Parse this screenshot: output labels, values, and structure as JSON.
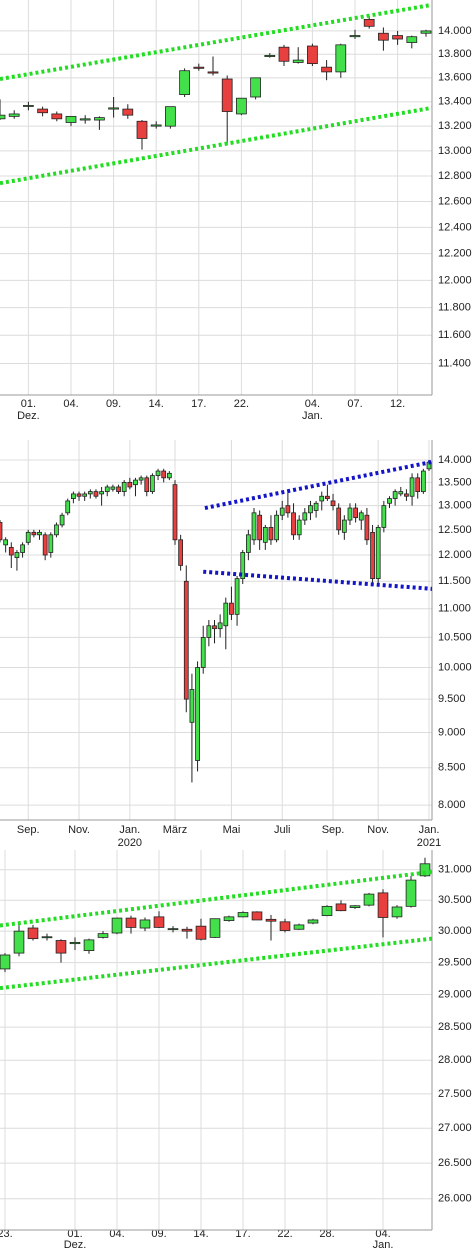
{
  "chart_data": [
    {
      "type": "candlestick",
      "log_scale": true,
      "grid": true,
      "up_color": "#44e04c",
      "down_color": "#e8403f",
      "categories": [
        null,
        null,
        [
          "01.",
          "Dez."
        ],
        null,
        null,
        "04.",
        null,
        null,
        "09.",
        null,
        null,
        "14.",
        null,
        null,
        "17.",
        null,
        null,
        "22.",
        null,
        null,
        null,
        null,
        [
          "04.",
          "Jan."
        ],
        null,
        null,
        "07.",
        null,
        null,
        "12.",
        null,
        null
      ],
      "open": [
        13260,
        13280,
        13370,
        13340,
        13300,
        13230,
        13250,
        13250,
        13340,
        13340,
        13240,
        13200,
        13200,
        13460,
        13690,
        13650,
        13590,
        13300,
        13440,
        13780,
        13860,
        13730,
        13870,
        13690,
        13650,
        13950,
        14100,
        13980,
        13960,
        13900,
        13980
      ],
      "high": [
        13420,
        13330,
        13400,
        13360,
        13320,
        13280,
        13290,
        13280,
        13440,
        13380,
        13250,
        13240,
        13360,
        13680,
        13720,
        13780,
        13620,
        13430,
        13600,
        13810,
        13880,
        13860,
        13890,
        13750,
        13890,
        14010,
        14130,
        14030,
        14000,
        13960,
        14010
      ],
      "low": [
        13250,
        13260,
        13330,
        13280,
        13240,
        13200,
        13220,
        13170,
        13270,
        13260,
        13010,
        13180,
        13180,
        13440,
        13660,
        13620,
        13050,
        13290,
        13420,
        13770,
        13700,
        13720,
        13700,
        13580,
        13600,
        13930,
        14020,
        13830,
        13880,
        13850,
        13950
      ],
      "close": [
        13290,
        13300,
        13370,
        13310,
        13260,
        13280,
        13260,
        13270,
        13350,
        13290,
        13100,
        13210,
        13360,
        13660,
        13680,
        13640,
        13320,
        13430,
        13600,
        13790,
        13740,
        13750,
        13720,
        13650,
        13880,
        13960,
        14040,
        13920,
        13930,
        13950,
        14000
      ],
      "trendlines": [
        {
          "color": "#22dd22",
          "points": [
            [
              0,
              13590
            ],
            [
              30.4,
              14227
            ]
          ]
        },
        {
          "color": "#22dd22",
          "points": [
            [
              0,
              12743
            ],
            [
              30.4,
              13350
            ]
          ]
        }
      ],
      "ylim": [
        11180,
        14270
      ],
      "yticks": [
        {
          "value": 11400,
          "label": "11.400"
        },
        {
          "value": 11600,
          "label": "11.600"
        },
        {
          "value": 11800,
          "label": "11.800"
        },
        {
          "value": 12000,
          "label": "12.000"
        },
        {
          "value": 12200,
          "label": "12.200"
        },
        {
          "value": 12400,
          "label": "12.400"
        },
        {
          "value": 12600,
          "label": "12.600"
        },
        {
          "value": 12800,
          "label": "12.800"
        },
        {
          "value": 13000,
          "label": "13.000"
        },
        {
          "value": 13200,
          "label": "13.200"
        },
        {
          "value": 13400,
          "label": "13.400"
        },
        {
          "value": 13600,
          "label": "13.600"
        },
        {
          "value": 13800,
          "label": "13.800"
        },
        {
          "value": 14000,
          "label": "14.000"
        }
      ]
    },
    {
      "type": "candlestick",
      "log_scale": true,
      "grid": true,
      "up_color": "#44e04c",
      "down_color": "#e8403f",
      "categories": [
        null,
        null,
        null,
        null,
        null,
        "Sep.",
        null,
        null,
        null,
        null,
        null,
        null,
        null,
        null,
        "Nov.",
        null,
        null,
        null,
        null,
        null,
        null,
        null,
        null,
        [
          "Jan.",
          "2020"
        ],
        null,
        null,
        null,
        null,
        null,
        null,
        null,
        "März",
        null,
        null,
        null,
        null,
        null,
        null,
        null,
        null,
        null,
        "Mai",
        null,
        null,
        null,
        null,
        null,
        null,
        null,
        null,
        "Juli",
        null,
        null,
        null,
        null,
        null,
        null,
        null,
        null,
        "Sep.",
        null,
        null,
        null,
        null,
        null,
        null,
        null,
        "Nov.",
        null,
        null,
        null,
        null,
        null,
        null,
        null,
        null,
        [
          "Jan.",
          "2021"
        ]
      ],
      "open": [
        12650,
        12200,
        12150,
        11950,
        12050,
        12250,
        12450,
        12400,
        12400,
        12050,
        12400,
        12600,
        12850,
        13150,
        13250,
        13200,
        13250,
        13300,
        13250,
        13300,
        13350,
        13400,
        13300,
        13500,
        13450,
        13550,
        13600,
        13300,
        13650,
        13750,
        13600,
        13450,
        12300,
        11500,
        9150,
        8600,
        10000,
        10500,
        10700,
        10650,
        10700,
        11100,
        10900,
        11550,
        12050,
        12300,
        12800,
        12250,
        12550,
        12300,
        12800,
        13000,
        12850,
        12400,
        12700,
        12850,
        12900,
        13100,
        13200,
        13100,
        12950,
        12450,
        12700,
        12950,
        12700,
        12800,
        12450,
        11550,
        12550,
        13050,
        13150,
        13250,
        13250,
        13200,
        13600,
        13300,
        13800
      ],
      "high": [
        12700,
        12350,
        12250,
        12100,
        12250,
        12500,
        12500,
        12500,
        12450,
        12450,
        12650,
        12850,
        13150,
        13300,
        13300,
        13300,
        13350,
        13350,
        13400,
        13450,
        13450,
        13450,
        13550,
        13600,
        13600,
        13650,
        13650,
        13700,
        13800,
        13800,
        13750,
        13550,
        12400,
        11800,
        9900,
        10100,
        10700,
        10800,
        10800,
        10900,
        11200,
        11400,
        11600,
        12100,
        12500,
        12950,
        12900,
        12600,
        12800,
        12900,
        13100,
        13300,
        13050,
        12800,
        12950,
        13100,
        13100,
        13300,
        13450,
        13250,
        13050,
        12800,
        13050,
        13050,
        12900,
        12950,
        12600,
        12600,
        13100,
        13200,
        13350,
        13400,
        13350,
        13700,
        13700,
        13800,
        14000
      ],
      "low": [
        12250,
        12050,
        11750,
        11700,
        11950,
        12200,
        12350,
        12300,
        11900,
        11950,
        12350,
        12550,
        12800,
        13050,
        13100,
        13100,
        13150,
        13150,
        13000,
        13200,
        13300,
        13250,
        13200,
        13350,
        13200,
        13450,
        13200,
        13250,
        13550,
        13500,
        13550,
        12200,
        11700,
        9300,
        8300,
        8450,
        9900,
        10350,
        10400,
        10500,
        10300,
        10800,
        10700,
        11450,
        11900,
        12200,
        12100,
        12100,
        12200,
        12250,
        12700,
        12750,
        12300,
        12300,
        12600,
        12700,
        12750,
        12900,
        13100,
        12900,
        12400,
        12300,
        12600,
        12650,
        12500,
        12200,
        11450,
        11450,
        12450,
        12950,
        13000,
        13200,
        13100,
        13000,
        13150,
        13250,
        13750
      ],
      "close": [
        12300,
        12300,
        12000,
        12050,
        12200,
        12450,
        12400,
        12450,
        12000,
        12400,
        12600,
        12800,
        13100,
        13250,
        13200,
        13250,
        13300,
        13200,
        13300,
        13400,
        13400,
        13300,
        13500,
        13400,
        13550,
        13600,
        13300,
        13650,
        13750,
        13600,
        13700,
        12300,
        11800,
        9500,
        9650,
        10000,
        10500,
        10700,
        10650,
        10750,
        11100,
        10900,
        11550,
        12050,
        12400,
        12850,
        12300,
        12550,
        12300,
        12800,
        12950,
        12850,
        12400,
        12700,
        12850,
        13000,
        13050,
        13200,
        13150,
        13000,
        12500,
        12700,
        12950,
        12750,
        12850,
        12300,
        11550,
        12550,
        13000,
        13150,
        13300,
        13300,
        13200,
        13600,
        13300,
        13750,
        13950
      ],
      "trendlines": [
        {
          "color": "#1515c8",
          "points": [
            [
              36.3,
              12950
            ],
            [
              76.5,
              13955
            ]
          ]
        },
        {
          "color": "#1515c8",
          "points": [
            [
              36,
              11680
            ],
            [
              77.9,
              11350
            ]
          ]
        }
      ],
      "ylim": [
        7810,
        14460
      ],
      "yticks": [
        {
          "value": 8000,
          "label": "8.000"
        },
        {
          "value": 8500,
          "label": "8.500"
        },
        {
          "value": 9000,
          "label": "9.000"
        },
        {
          "value": 9500,
          "label": "9.500"
        },
        {
          "value": 10000,
          "label": "10.000"
        },
        {
          "value": 10500,
          "label": "10.500"
        },
        {
          "value": 11000,
          "label": "11.000"
        },
        {
          "value": 11500,
          "label": "11.500"
        },
        {
          "value": 12000,
          "label": "12.000"
        },
        {
          "value": 12500,
          "label": "12.500"
        },
        {
          "value": 13000,
          "label": "13.000"
        },
        {
          "value": 13500,
          "label": "13.500"
        },
        {
          "value": 14000,
          "label": "14.000"
        }
      ]
    },
    {
      "type": "candlestick",
      "log_scale": true,
      "grid": true,
      "up_color": "#44e04c",
      "down_color": "#e8403f",
      "categories": [
        "23.",
        null,
        null,
        null,
        null,
        [
          "01.",
          "Dez."
        ],
        null,
        null,
        "04.",
        null,
        null,
        "09.",
        null,
        null,
        "14.",
        null,
        null,
        "17.",
        null,
        null,
        "22.",
        null,
        null,
        "28.",
        null,
        null,
        null,
        [
          "04.",
          "Jan."
        ],
        null,
        null,
        null
      ],
      "open": [
        29400,
        29650,
        30050,
        29900,
        29850,
        29800,
        29690,
        29900,
        29970,
        30210,
        30050,
        30230,
        30030,
        30030,
        30080,
        29900,
        30170,
        30230,
        30310,
        30190,
        30150,
        30030,
        30130,
        30250,
        30440,
        30380,
        30420,
        30620,
        30230,
        30400,
        30900
      ],
      "high": [
        29650,
        30100,
        30100,
        29960,
        29870,
        29900,
        29880,
        30000,
        30220,
        30250,
        30220,
        30320,
        30080,
        30070,
        30200,
        30200,
        30250,
        30320,
        30320,
        30260,
        30200,
        30120,
        30200,
        30420,
        30500,
        30420,
        30620,
        30680,
        30420,
        30900,
        31200
      ],
      "low": [
        29350,
        29600,
        29850,
        29850,
        29500,
        29700,
        29640,
        29880,
        29950,
        29960,
        30000,
        30050,
        29980,
        29880,
        29850,
        29890,
        30150,
        30220,
        30180,
        29850,
        29980,
        30020,
        30110,
        30240,
        30320,
        30360,
        30400,
        29900,
        30200,
        30380,
        30880
      ],
      "close": [
        29620,
        30000,
        29880,
        29910,
        29650,
        29820,
        29860,
        29960,
        30210,
        30060,
        30180,
        30060,
        30040,
        30000,
        29870,
        30200,
        30230,
        30300,
        30180,
        30160,
        30010,
        30100,
        30180,
        30400,
        30330,
        30410,
        30600,
        30220,
        30390,
        30830,
        31100
      ],
      "trendlines": [
        {
          "color": "#22dd22",
          "points": [
            [
              -0.36,
              30090
            ],
            [
              30.5,
              30967
            ]
          ]
        },
        {
          "color": "#22dd22",
          "points": [
            [
              -0.36,
              29100
            ],
            [
              30.5,
              29880
            ]
          ]
        }
      ],
      "ylim": [
        25570,
        31330
      ],
      "yticks": [
        {
          "value": 26000,
          "label": "26.000"
        },
        {
          "value": 26500,
          "label": "26.500"
        },
        {
          "value": 27000,
          "label": "27.000"
        },
        {
          "value": 27500,
          "label": "27.500"
        },
        {
          "value": 28000,
          "label": "28.000"
        },
        {
          "value": 28500,
          "label": "28.500"
        },
        {
          "value": 29000,
          "label": "29.000"
        },
        {
          "value": 29500,
          "label": "29.500"
        },
        {
          "value": 30000,
          "label": "30.000"
        },
        {
          "value": 30500,
          "label": "30.500"
        },
        {
          "value": 31000,
          "label": "31.000"
        }
      ]
    }
  ]
}
